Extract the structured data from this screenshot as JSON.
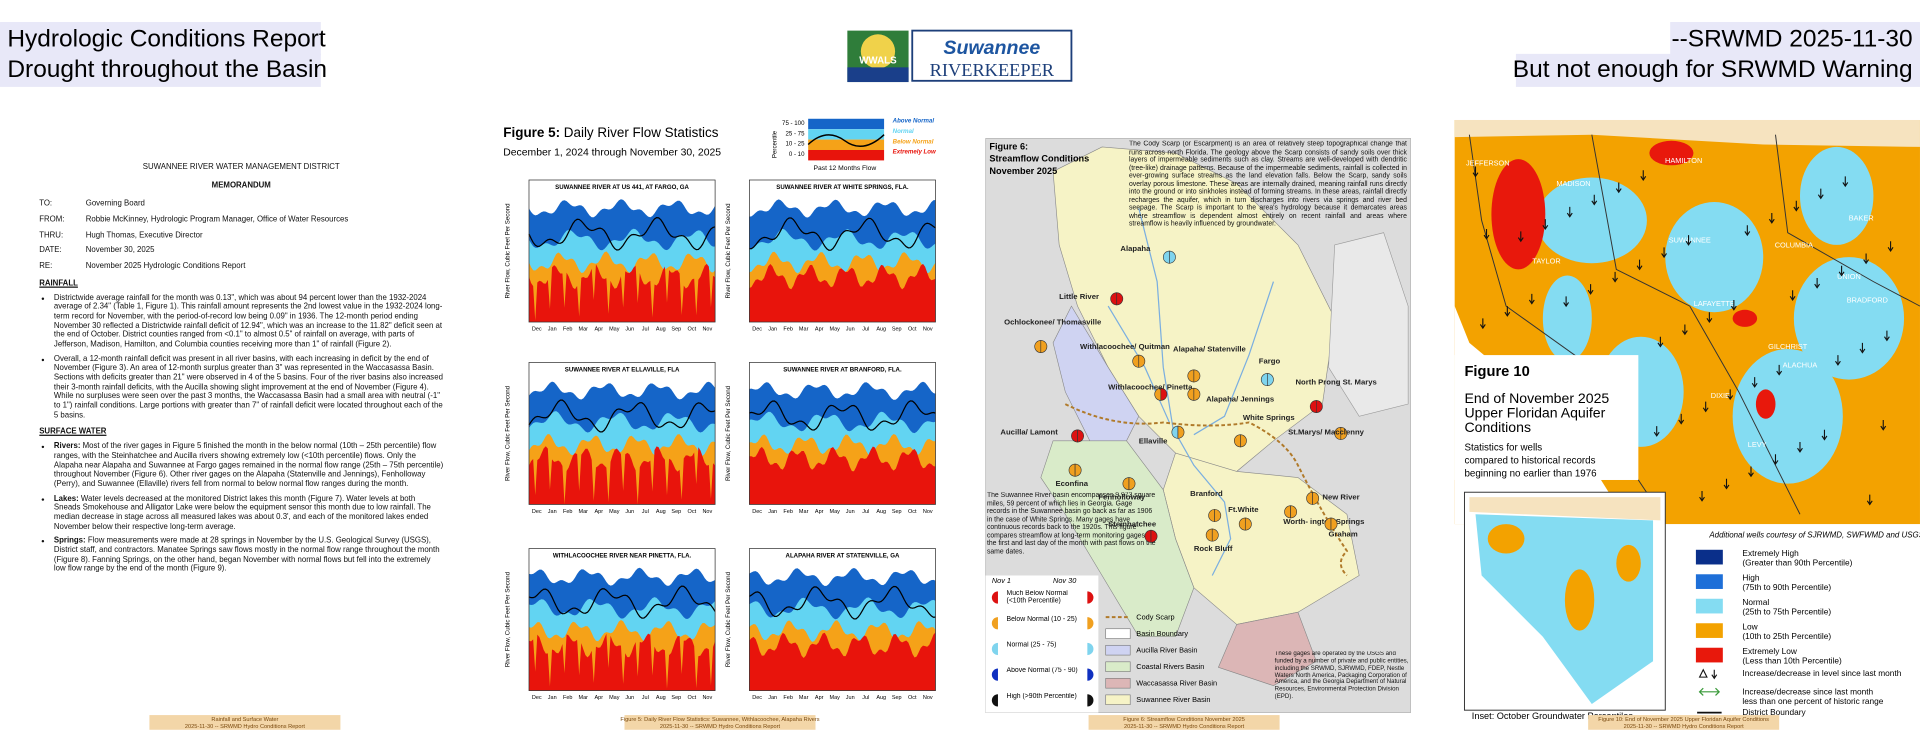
{
  "header": {
    "title": "Hydrologic Conditions Report",
    "subtitle": "Drought throughout the Basin",
    "date_tag": "--SRWMD 2025-11-30",
    "warning": "But not enough for SRWMD Warning",
    "logo": {
      "badge": "WWALS",
      "name": "Suwannee",
      "brand": "RIVERKEEPER"
    }
  },
  "memo": {
    "org": "SUWANNEE RIVER WATER MANAGEMENT DISTRICT",
    "heading": "MEMORANDUM",
    "fields": [
      {
        "label": "TO:",
        "value": "Governing Board"
      },
      {
        "label": "FROM:",
        "value": "Robbie McKinney, Hydrologic Program Manager, Office of Water Resources"
      },
      {
        "label": "THRU:",
        "value": "Hugh Thomas, Executive Director"
      },
      {
        "label": "DATE:",
        "value": "November 30, 2025"
      },
      {
        "label": "RE:",
        "value": "November 2025 Hydrologic Conditions Report"
      }
    ],
    "sections": [
      {
        "title": "RAINFALL",
        "items": [
          {
            "lead": null,
            "text": "Districtwide average rainfall for the month was 0.13\", which was about 94 percent lower than the 1932-2024 average of 2.34\" (Table 1, Figure 1). This rainfall amount represents the 2nd lowest value in the 1932-2024 long-term record for November, with the period-of-record low being 0.09\" in 1936. The 12-month period ending November 30 reflected a Districtwide rainfall deficit of 12.94\", which was an increase to the 11.82\" deficit seen at the end of October. District counties ranged from <0.1\" to almost 0.5\" of rainfall on average, with parts of Jefferson, Madison, Hamilton, and Columbia counties receiving more than 1\" of rainfall (Figure 2)."
          },
          {
            "lead": null,
            "text": "Overall, a 12-month rainfall deficit was present in all river basins, with each increasing in deficit by the end of November (Figure 3). An area of 12-month surplus greater than 3\" was represented in the Waccasassa Basin. Sections with deficits greater than 21\" were observed in 4 of the 5 basins. Four of the river basins also increased their 3-month rainfall deficits, with the Aucilla showing slight improvement at the end of November (Figure 4). While no surpluses were seen over the past 3 months, the Waccasassa Basin had a small area with neutral (-1\" to 1\") rainfall conditions. Large portions with greater than 7\" of rainfall deficit were located throughout each of the 5 basins."
          }
        ]
      },
      {
        "title": "SURFACE WATER",
        "items": [
          {
            "lead": "Rivers:",
            "text": "Most of the river gages in Figure 5 finished the month in the below normal (10th – 25th percentile) flow ranges, with the Steinhatchee and Aucilla rivers showing extremely low (<10th percentile) flows. Only the Alapaha near Alapaha and Suwannee at Fargo gages remained in the normal flow range (25th – 75th percentile) throughout November (Figure 6). Other river gages on the Alapaha (Statenville and Jennings), Fenholloway (Perry), and Suwannee (Ellaville) rivers fell from normal to below normal flow ranges during the month."
          },
          {
            "lead": "Lakes:",
            "text": "Water levels decreased at the monitored District lakes this month (Figure 7). Water levels at both Sneads Smokehouse and Alligator Lake were below the equipment sensor this month due to low rainfall. The median decrease in stage across all measured lakes was about 0.3', and each of the monitored lakes ended November below their respective long-term average."
          },
          {
            "lead": "Springs:",
            "text": "Flow measurements were made at 28 springs in November by the U.S. Geological Survey (USGS), District staff, and contractors. Manatee Springs saw flows mostly in the normal flow range throughout the month (Figure 8). Fanning Springs, on the other hand, began November with normal flows but fell into the extremely low flow range by the end of the month (Figure 9)."
          }
        ]
      }
    ],
    "caption": [
      "Rainfall and Surface Water",
      "2025-11-30 -- SRWMD Hydro Conditions Report"
    ]
  },
  "figure5": {
    "label": "Figure 5:",
    "title": "Daily River Flow Statistics",
    "period": "December 1, 2024 through November 30, 2025",
    "legend": {
      "axis": "Percentile",
      "ranges": [
        "75 - 100",
        "25 - 75",
        "10 - 25",
        "0 - 10"
      ],
      "names": [
        "Above Normal",
        "Normal",
        "Below Normal",
        "Extremely Low"
      ],
      "line": "Past 12 Months Flow"
    },
    "y_label": "River Flow, Cubic Feet Per Second",
    "months": [
      "Dec",
      "Jan",
      "Feb",
      "Mar",
      "Apr",
      "May",
      "Jun",
      "Jul",
      "Aug",
      "Sep",
      "Oct",
      "Nov"
    ],
    "charts": [
      "SUWANNEE RIVER AT US 441, AT FARGO, GA",
      "SUWANNEE RIVER AT WHITE SPRINGS, FLA.",
      "SUWANNEE RIVER AT ELLAVILLE, FLA",
      "SUWANNEE RIVER AT BRANFORD, FLA.",
      "WITHLACOOCHEE RIVER NEAR PINETTA, FLA.",
      "ALAPAHA RIVER AT STATENVILLE, GA"
    ],
    "caption": [
      "Figure 5: Daily River Flow Statistics: Suwannee, Withlacoochee, Alapaha Rivers",
      "2025-11-30 -- SRWMD Hydro Conditions Report"
    ]
  },
  "figure6": {
    "label": "Figure 6:",
    "title": "Streamflow Conditions",
    "month": "November 2025",
    "description": "The Cody Scarp (or Escarpment) is an area of relatively steep topographical change that runs across north Florida. The geology above the Scarp consists of sandy soils over thick layers of impermeable sediments such as clay. Streams are well-developed with dendritic (tree-like) drainage patterns. Because of the impermeable sediments, rainfall is collected in ever-growing surface streams as the land elevation falls. Below the Scarp, sandy soils overlay porous limestone. These areas are internally drained, meaning rainfall runs directly into the ground or into sinkholes instead of forming streams. In these areas, rainfall directly recharges the aquifer, which in turn discharges into rivers via springs and river bed seepage. The Scarp is important to the area's hydrology because it demarcates areas where streamflow is dependent almost entirely on recent rainfall and areas where streamflow is heavily influenced by groundwater.",
    "basin_note": "The Suwannee River basin encompasses 9,973 square miles, 59 percent of which lies in Georgia. Gage records in the Suwannee basin go back as far as 1906 in the case of White Springs. Many gages have continuous records back to the 1920s. This figure compares streamflow at long-term monitoring gages on the first and last day of the month with past flows on the same dates.",
    "sites": [
      "Alapaha",
      "Little River",
      "Ochlockonee/ Thomasville",
      "Withlacoochee/ Quitman",
      "Alapaha/ Statenville",
      "Fargo",
      "North Prong St. Marys",
      "Withlacoochee/ Pinetta",
      "Alapaha/ Jennings",
      "White Springs",
      "Aucilla/ Lamont",
      "Ellaville",
      "St.Marys/ Macclenny",
      "Econfina",
      "Fenholloway",
      "Branford",
      "New River",
      "Steinhatchee",
      "Ft.White",
      "Worth- ington Springs",
      "Graham",
      "Rock Bluff"
    ],
    "legend_days": [
      "Nov 1",
      "Nov 30"
    ],
    "legend_classes": [
      "Much Below Normal (<10th Percentile)",
      "Below Normal (10 - 25)",
      "Normal (25 - 75)",
      "Above Normal (75 - 90)",
      "High (>90th Percentile)"
    ],
    "legend_areas": [
      "Cody Scarp",
      "Basin Boundary",
      "Aucilla River Basin",
      "Coastal Rivers Basin",
      "Waccasassa River Basin",
      "Suwannee River Basin"
    ],
    "funding_note": "These gages are operated by the USGS and funded by a number of private and public entities, including the SRWMD, SJRWMD, FDEP, Nestle Waters North America, Packaging Corporation of America, and the Georgia Department of Natural Resources, Environmental Protection Division (EPD).",
    "caption": [
      "Figure 6: Streamflow Conditions November 2025",
      "2025-11-30 -- SRWMD Hydro Conditions Report"
    ]
  },
  "figure10": {
    "label": "Figure 10",
    "title": [
      "End of November 2025",
      "Upper Floridan Aquifer",
      "Conditions"
    ],
    "stats": [
      "Statistics for wells",
      "compared to historical records",
      "beginning no earlier than 1976"
    ],
    "counties": [
      "JEFFERSON",
      "MADISON",
      "HAMILTON",
      "TAYLOR",
      "SUWANNEE",
      "COLUMBIA",
      "BAKER",
      "UNION",
      "BRADFORD",
      "LAFAYETTE",
      "GILCHRIST",
      "ALACHUA",
      "DIXIE",
      "LEVY"
    ],
    "credit": "Additional wells courtesy of SJRWMD, SWFWMD and USGS",
    "legend": [
      [
        "Extremely High",
        "(Greater than 90th Percentile)"
      ],
      [
        "High",
        "(75th to 90th Percentile)"
      ],
      [
        "Normal",
        "(25th to 75th Percentile)"
      ],
      [
        "Low",
        "(10th to 25th Percentile)"
      ],
      [
        "Extremely Low",
        "(Less than 10th Percentile)"
      ]
    ],
    "symbols": [
      [
        "Increase/decrease in level since last month"
      ],
      [
        "Increase/decrease since last month",
        "less than one percent of historic range"
      ],
      [
        "District Boundary"
      ]
    ],
    "inset": "Inset: October Groundwater Percentiles",
    "caption": [
      "Figure 10: End of November 2025 Upper Floridan Aquifer Conditions",
      "2025-11-30 -- SRWMD Hydro Conditions Report"
    ]
  }
}
